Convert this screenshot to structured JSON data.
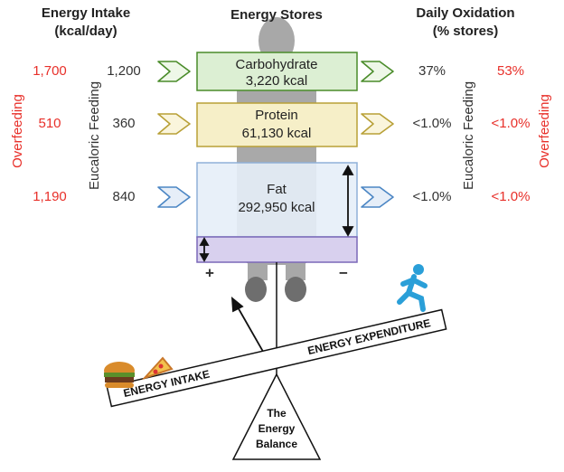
{
  "intake_header": {
    "title": "Energy Intake",
    "unit": "(kcal/day)"
  },
  "stores_header": "Energy Stores",
  "oxidation_header": {
    "title": "Daily Oxidation",
    "unit": "(% stores)"
  },
  "side_labels": {
    "overfeeding": "Overfeeding",
    "eucaloric": "Eucaloric Feeding"
  },
  "stores": [
    {
      "name": "Carbohydrate",
      "amount": "3,220 kcal",
      "intake_overfeeding": "1,700",
      "intake_eucaloric": "1,200",
      "oxidation_eucaloric": "37%",
      "oxidation_overfeeding": "53%"
    },
    {
      "name": "Protein",
      "amount": "61,130 kcal",
      "intake_overfeeding": "510",
      "intake_eucaloric": "360",
      "oxidation_eucaloric": "<1.0%",
      "oxidation_overfeeding": "<1.0%"
    },
    {
      "name": "Fat",
      "amount": "292,950 kcal",
      "intake_overfeeding": "1,190",
      "intake_eucaloric": "840",
      "oxidation_eucaloric": "<1.0%",
      "oxidation_overfeeding": "<1.0%"
    }
  ],
  "balance_signs": {
    "plus": "+",
    "minus": "−"
  },
  "balance": {
    "intake": "ENERGY INTAKE",
    "expenditure": "ENERGY EXPENDITURE",
    "fulcrum": [
      "The",
      "Energy",
      "Balance"
    ]
  }
}
